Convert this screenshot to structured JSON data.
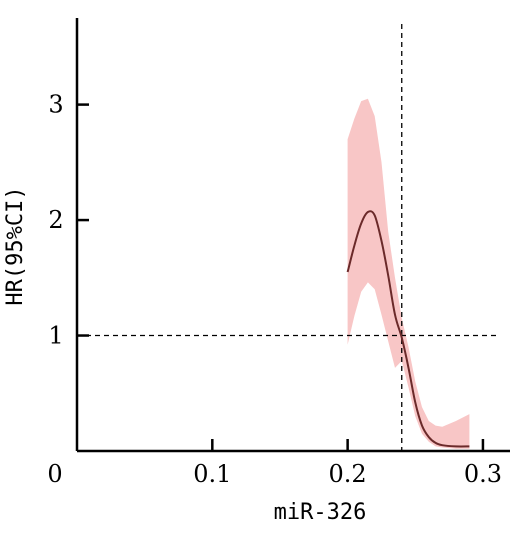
{
  "chart_data": {
    "type": "line",
    "xlabel": "miR-326",
    "ylabel": "HR(95%CI)",
    "xlim": [
      0.0,
      0.32
    ],
    "ylim": [
      0.0,
      3.75
    ],
    "x_ticks": [
      0.1,
      0.2,
      0.3
    ],
    "x_tick_labels": [
      "0.1",
      "0.2",
      "0.3"
    ],
    "y_ticks": [
      1,
      2,
      3
    ],
    "y_tick_labels": [
      "1",
      "2",
      "3"
    ],
    "origin_label": "0",
    "grid": false,
    "reference_lines": {
      "hr_reference": 1.0,
      "x_cutoff": 0.24
    },
    "colors": {
      "curve": "#6b2a2a",
      "band": "#f8c6c6",
      "axis": "#000000"
    },
    "series": [
      {
        "x": [
          0.2,
          0.205,
          0.21,
          0.215,
          0.22,
          0.225,
          0.23,
          0.235,
          0.24,
          0.245,
          0.25,
          0.255,
          0.26,
          0.265,
          0.27,
          0.28,
          0.29
        ],
        "y": [
          1.55,
          1.78,
          1.97,
          2.07,
          2.04,
          1.82,
          1.52,
          1.18,
          0.98,
          0.72,
          0.42,
          0.22,
          0.12,
          0.07,
          0.05,
          0.04,
          0.04
        ],
        "lower": [
          0.92,
          1.17,
          1.38,
          1.46,
          1.4,
          1.18,
          0.95,
          0.72,
          0.78,
          0.55,
          0.3,
          0.15,
          0.08,
          0.04,
          0.03,
          0.02,
          0.02
        ],
        "upper": [
          2.7,
          2.88,
          3.03,
          3.05,
          2.9,
          2.5,
          1.9,
          1.5,
          1.15,
          0.9,
          0.6,
          0.38,
          0.26,
          0.22,
          0.21,
          0.26,
          0.32
        ]
      }
    ]
  }
}
